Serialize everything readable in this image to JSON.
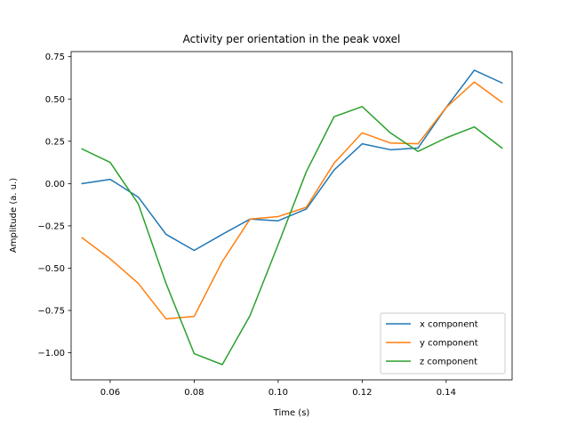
{
  "chart_data": {
    "type": "line",
    "title": "Activity per orientation in the peak voxel",
    "xlabel": "Time (s)",
    "ylabel": "Amplitude (a. u.)",
    "xlim": [
      0.0507,
      0.1557
    ],
    "ylim": [
      -1.16,
      0.78
    ],
    "x_ticks": [
      0.06,
      0.08,
      0.1,
      0.12,
      0.14
    ],
    "x_tick_labels": [
      "0.06",
      "0.08",
      "0.10",
      "0.12",
      "0.14"
    ],
    "y_ticks": [
      0.75,
      0.5,
      0.25,
      0.0,
      -0.25,
      -0.5,
      -0.75,
      -1.0
    ],
    "y_tick_labels": [
      "0.75",
      "0.50",
      "0.25",
      "0.00",
      "−0.25",
      "−0.50",
      "−0.75",
      "−1.00"
    ],
    "grid": false,
    "legend_position": "lower-right",
    "x": [
      0.0533,
      0.06,
      0.0667,
      0.0733,
      0.08,
      0.0867,
      0.0933,
      0.1,
      0.1067,
      0.1133,
      0.12,
      0.1267,
      0.1333,
      0.14,
      0.1467,
      0.1533
    ],
    "series": [
      {
        "name": "x component",
        "color": "#1f77b4",
        "values": [
          0.0,
          0.025,
          -0.08,
          -0.3,
          -0.395,
          -0.3,
          -0.21,
          -0.22,
          -0.15,
          0.08,
          0.235,
          0.2,
          0.21,
          0.45,
          0.67,
          0.595
        ]
      },
      {
        "name": "y component",
        "color": "#ff7f0e",
        "values": [
          -0.32,
          -0.445,
          -0.59,
          -0.8,
          -0.785,
          -0.46,
          -0.21,
          -0.195,
          -0.14,
          0.12,
          0.3,
          0.24,
          0.235,
          0.45,
          0.6,
          0.48
        ]
      },
      {
        "name": "z component",
        "color": "#2ca02c",
        "values": [
          0.205,
          0.125,
          -0.12,
          -0.59,
          -1.005,
          -1.07,
          -0.78,
          -0.36,
          0.07,
          0.395,
          0.455,
          0.3,
          0.19,
          0.27,
          0.335,
          0.21
        ]
      }
    ]
  }
}
